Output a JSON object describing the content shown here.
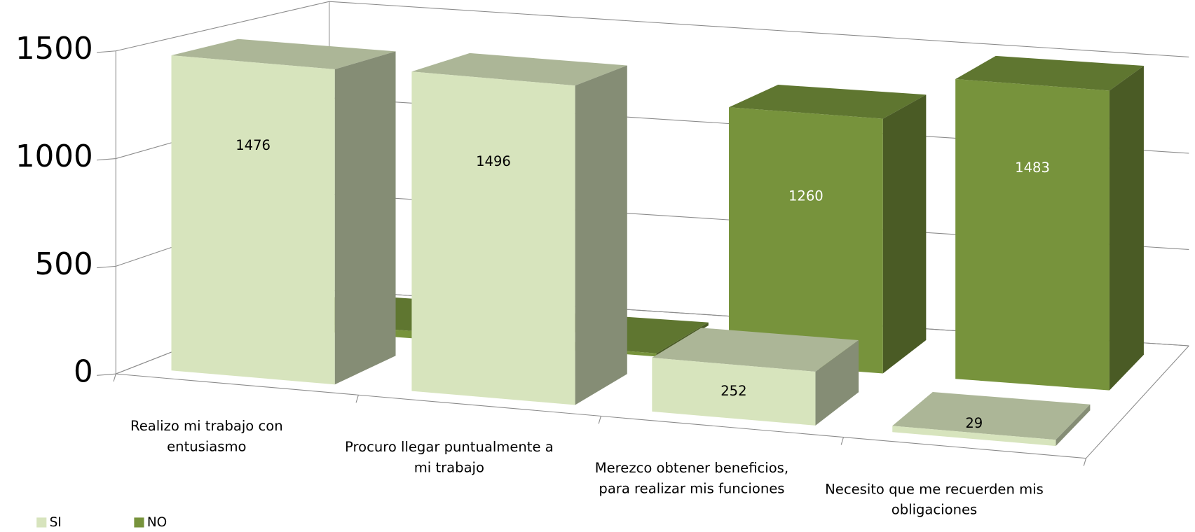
{
  "chart_data": {
    "type": "bar3d",
    "categories": [
      "Realizo mi trabajo con entusiasmo",
      "Procuro llegar puntualmente a mi trabajo",
      "Merezco obtener beneficios, para realizar mis funciones",
      "Necesito que me recuerden mis obligaciones"
    ],
    "series": [
      {
        "name": "SI",
        "color": "#d7e4bd",
        "values": [
          1476,
          1496,
          252,
          29
        ]
      },
      {
        "name": "NO",
        "color": "#77933c",
        "values": [
          36,
          16,
          1260,
          1483
        ]
      }
    ],
    "ylim": [
      0,
      1500
    ],
    "yticks": [
      0,
      500,
      1000,
      1500
    ],
    "grid": true,
    "legend": "bottom-left"
  }
}
